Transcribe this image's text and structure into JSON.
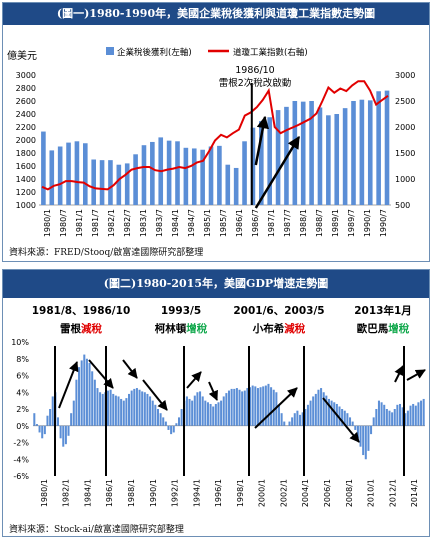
{
  "chart1": {
    "title": "(圖一)1980-1990年，美國企業稅後獲利與道瓊工業指數走勢圖",
    "y_unit": "億美元",
    "legend_bar": "企業稅後獲利(左軸)",
    "legend_line": "道瓊工業指數(右軸)",
    "annotation_date": "1986/10",
    "annotation_text": "雷根2次稅改啟動",
    "source": "資料來源：FRED/Stooq/啟富達國際研究部整理",
    "chart_data": {
      "type": "bar+line",
      "x_tick_labels": [
        "1980/1",
        "1980/7",
        "1981/1",
        "1981/7",
        "1982/1",
        "1982/7",
        "1983/1",
        "1983/7",
        "1984/1",
        "1984/7",
        "1985/1",
        "1985/7",
        "1986/1",
        "1986/7",
        "1987/1",
        "1987/7",
        "1988/1",
        "1988/7",
        "1989/1",
        "1989/7",
        "1990/1",
        "1990/7"
      ],
      "y_left_ticks": [
        1000,
        1200,
        1400,
        1600,
        1800,
        2000,
        2200,
        2400,
        2600,
        2800,
        3000
      ],
      "y_right_ticks": [
        500,
        1000,
        1500,
        2000,
        2500,
        3000
      ],
      "ylim_left": [
        1000,
        3000
      ],
      "ylim_right": [
        500,
        3000
      ],
      "series": [
        {
          "name": "企業稅後獲利(左軸)",
          "kind": "bar",
          "axis": "left",
          "values": [
            2130,
            1840,
            1900,
            1960,
            1980,
            1950,
            1700,
            1690,
            1690,
            1620,
            1640,
            1780,
            1920,
            1970,
            2040,
            1990,
            1980,
            1880,
            1870,
            1850,
            1900,
            1910,
            1620,
            1570,
            1980,
            2190,
            2290,
            2350,
            2460,
            2510,
            2600,
            2590,
            2600,
            2500,
            2380,
            2400,
            2490,
            2600,
            2620,
            2610,
            2750,
            2760
          ]
        },
        {
          "name": "道瓊工業指數(右軸)",
          "kind": "line",
          "axis": "right",
          "values": [
            850,
            800,
            870,
            900,
            960,
            960,
            940,
            930,
            860,
            820,
            810,
            800,
            880,
            1000,
            1080,
            1180,
            1210,
            1230,
            1230,
            1170,
            1150,
            1180,
            1200,
            1230,
            1210,
            1250,
            1320,
            1350,
            1530,
            1740,
            1850,
            1800,
            1880,
            1950,
            2220,
            2280,
            2380,
            2520,
            2700,
            2000,
            1880,
            1940,
            1990,
            2040,
            2100,
            2160,
            2260,
            2500,
            2760,
            2660,
            2740,
            2690,
            2800,
            2880,
            2880,
            2700,
            2430,
            2520,
            2600
          ]
        }
      ]
    }
  },
  "chart2": {
    "title": "(圖二)1980-2015年，美國GDP增速走勢圖",
    "source": "資料來源：Stock-ai/啟富達國際研究部整理",
    "annotations": [
      {
        "label": "1981/8、1986/10",
        "who": "雷根",
        "action": "減稅",
        "action_color": "#e00000"
      },
      {
        "label": "1993/5",
        "who": "柯林頓",
        "action": "增稅",
        "action_color": "#11a84c"
      },
      {
        "label": "2001/6、2003/5",
        "who": "小布希",
        "action": "減稅",
        "action_color": "#e00000"
      },
      {
        "label": "2013年1月",
        "who": "歐巴馬",
        "action": "增稅",
        "action_color": "#11a84c"
      }
    ],
    "chart_data": {
      "type": "bar",
      "x_tick_labels": [
        "1980/1",
        "1982/1",
        "1984/1",
        "1986/1",
        "1988/1",
        "1990/1",
        "1992/1",
        "1994/1",
        "1996/1",
        "1998/1",
        "2000/1",
        "2002/1",
        "2004/1",
        "2006/1",
        "2008/1",
        "2010/1",
        "2012/1",
        "2014/1"
      ],
      "y_ticks": [
        "10%",
        "8%",
        "6%",
        "4%",
        "2%",
        "0%",
        "-2%",
        "-4%",
        "-6%"
      ],
      "ylim": [
        -6,
        10
      ],
      "values": [
        1.5,
        0.2,
        -0.8,
        -1.5,
        -1.0,
        1.2,
        2.0,
        3.5,
        4.0,
        1.0,
        -1.5,
        -2.5,
        -2.2,
        -1.2,
        1.5,
        3.0,
        5.5,
        7.0,
        7.8,
        8.5,
        8.0,
        7.5,
        6.5,
        5.5,
        4.5,
        4.0,
        3.8,
        4.0,
        4.2,
        4.3,
        3.8,
        3.6,
        3.5,
        3.2,
        3.0,
        3.3,
        3.8,
        4.2,
        4.4,
        4.5,
        4.3,
        4.1,
        4.0,
        3.8,
        3.5,
        3.0,
        2.5,
        2.0,
        1.5,
        1.0,
        0.5,
        -0.5,
        -1.0,
        -0.8,
        0.3,
        1.0,
        2.0,
        3.0,
        3.5,
        3.2,
        3.0,
        3.6,
        4.0,
        4.1,
        3.5,
        3.0,
        2.8,
        2.6,
        2.3,
        2.6,
        2.8,
        3.0,
        3.5,
        3.9,
        4.2,
        4.4,
        4.4,
        4.5,
        4.3,
        4.1,
        4.2,
        4.5,
        4.6,
        4.8,
        4.7,
        4.5,
        4.6,
        4.7,
        4.8,
        5.0,
        4.6,
        4.3,
        4.0,
        2.5,
        1.5,
        0.5,
        0.0,
        0.5,
        1.0,
        1.5,
        1.8,
        1.3,
        1.6,
        2.0,
        2.5,
        3.0,
        3.5,
        3.8,
        4.3,
        4.5,
        4.0,
        3.6,
        3.2,
        3.0,
        2.8,
        2.6,
        2.3,
        2.0,
        1.8,
        1.5,
        1.0,
        0.5,
        -0.5,
        -1.5,
        -2.5,
        -3.5,
        -4.0,
        -3.0,
        -1.0,
        1.0,
        2.0,
        3.0,
        2.8,
        2.5,
        2.0,
        1.8,
        1.6,
        2.0,
        2.5,
        2.6,
        2.2,
        1.5,
        1.8,
        2.4,
        2.6,
        2.4,
        2.8,
        3.0,
        3.2
      ]
    }
  },
  "colors": {
    "header_bg": "#1f4a87",
    "bar": "#5b8ed6",
    "line": "#e10000",
    "red": "#e00000",
    "green": "#11a84c"
  }
}
